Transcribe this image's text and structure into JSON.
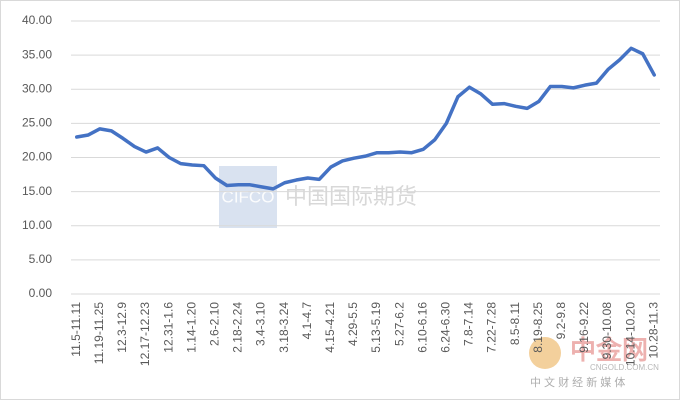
{
  "chart_data": {
    "type": "line",
    "categories": [
      "11.5-11.11",
      null,
      "11.19-11.25",
      null,
      "12.3-12.9",
      null,
      "12.17-12.23",
      null,
      "12.31-1.6",
      null,
      "1.14-1.20",
      null,
      "2.6-2.10",
      null,
      "2.18-2.24",
      null,
      "3.4-3.10",
      null,
      "3.18-3.24",
      null,
      "4.1-4.7",
      null,
      "4.15-4.21",
      null,
      "4.29-5.5",
      null,
      "5.13-5.19",
      null,
      "5.27-6.2",
      null,
      "6.10-6.16",
      null,
      "6.24-6.30",
      null,
      "7.8-7.14",
      null,
      "7.22-7.28",
      null,
      "8.5-8.11",
      null,
      "8.19-8.25",
      null,
      "9.2-9.8",
      null,
      "9.16-9.22",
      null,
      "9.30-10.08",
      null,
      "10.14-10.20",
      null,
      "10.28-11.3"
    ],
    "series": [
      {
        "color": "#4472c4",
        "values": [
          23.0,
          23.3,
          24.2,
          23.9,
          22.8,
          21.6,
          20.8,
          21.4,
          20.0,
          19.1,
          18.9,
          18.8,
          17.0,
          15.9,
          16.0,
          16.0,
          15.7,
          15.4,
          16.3,
          16.7,
          17.0,
          16.8,
          18.6,
          19.5,
          19.9,
          20.2,
          20.7,
          20.7,
          20.8,
          20.7,
          21.2,
          22.6,
          25.0,
          28.9,
          30.3,
          29.3,
          27.8,
          27.9,
          27.5,
          27.2,
          28.2,
          30.4,
          30.4,
          30.2,
          30.6,
          30.9,
          32.9,
          34.3,
          36.0,
          35.2,
          32.1
        ]
      }
    ],
    "ylim": [
      0,
      40
    ],
    "yticks": [
      {
        "value": 0,
        "label": "0.00"
      },
      {
        "value": 5,
        "label": "5.00"
      },
      {
        "value": 10,
        "label": "10.00"
      },
      {
        "value": 15,
        "label": "15.00"
      },
      {
        "value": 20,
        "label": "20.00"
      },
      {
        "value": 25,
        "label": "25.00"
      },
      {
        "value": 30,
        "label": "30.00"
      },
      {
        "value": 35,
        "label": "35.00"
      },
      {
        "value": 40,
        "label": "40.00"
      }
    ],
    "grid": true,
    "annotations": [
      "CIFCO",
      "中国国际期货",
      "中金网",
      "CNGOLD.COM.CN",
      "中 文 财 经 新 媒 体"
    ]
  }
}
